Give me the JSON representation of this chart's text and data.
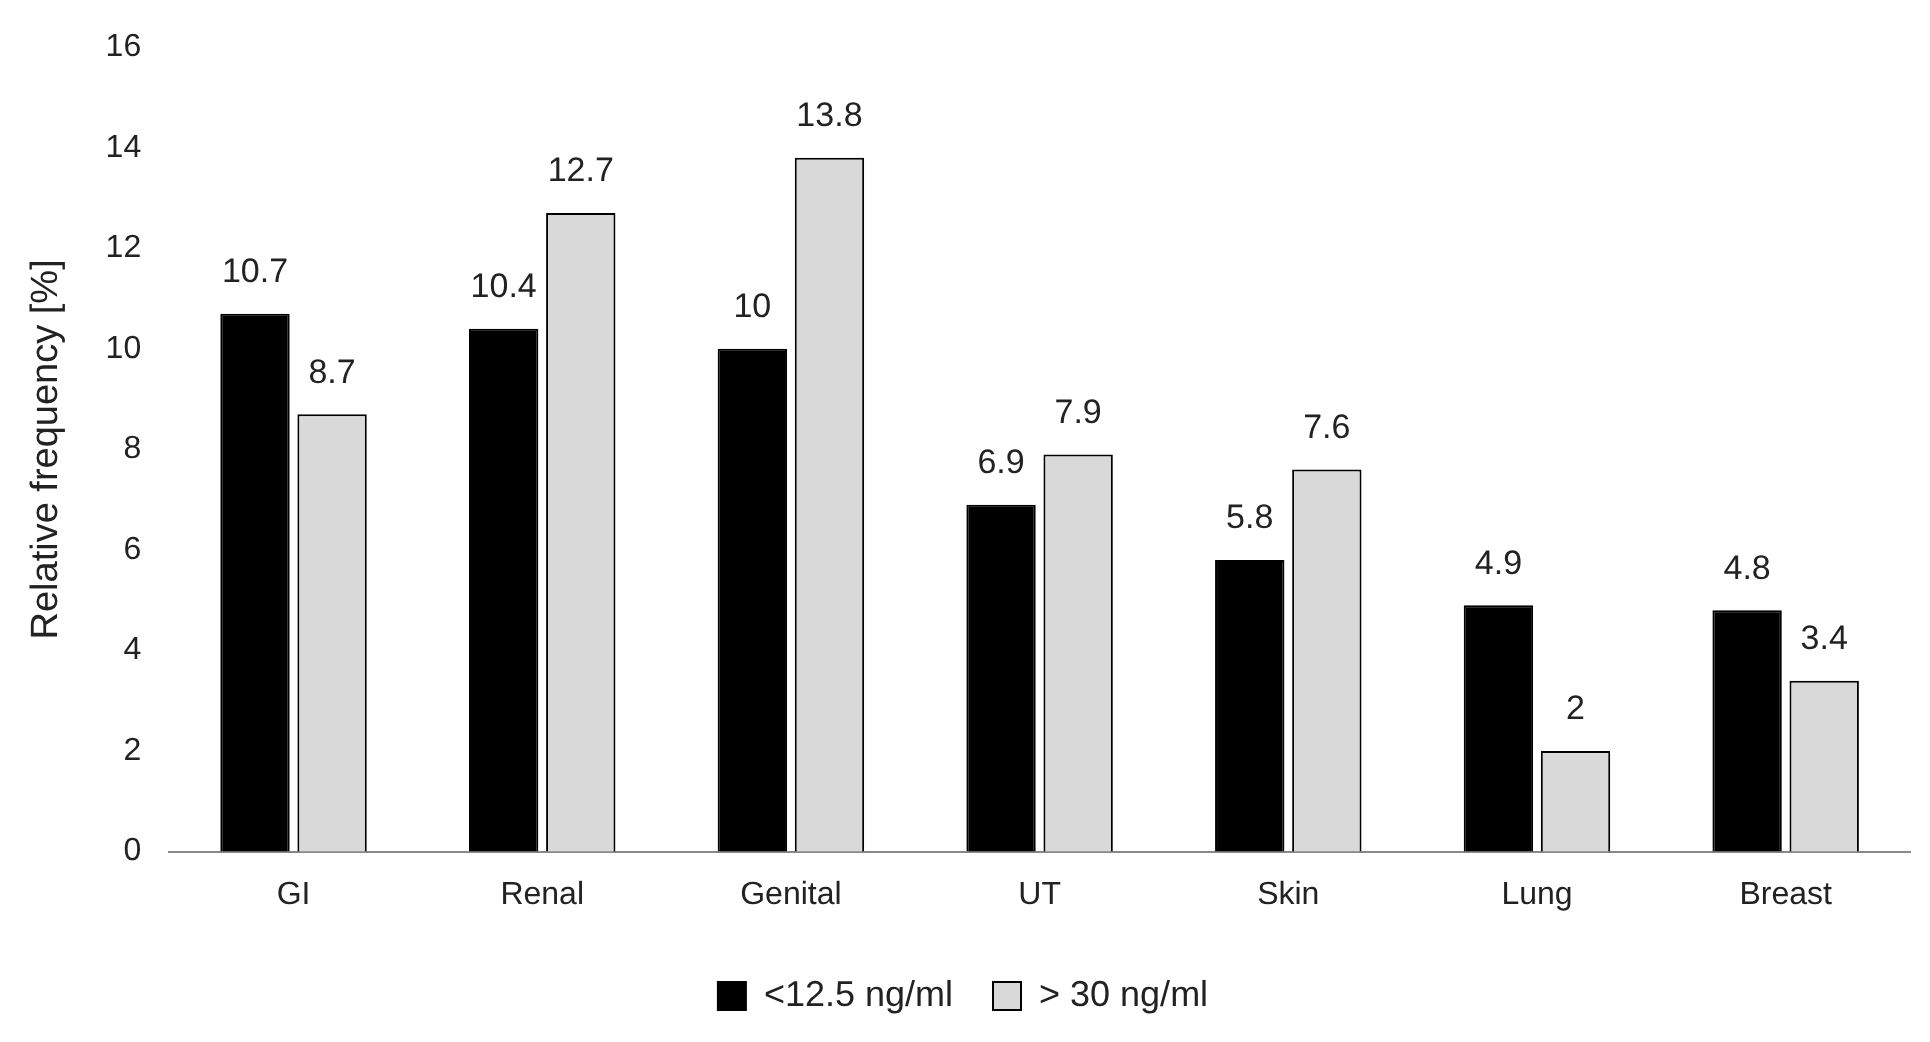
{
  "chart_data": {
    "type": "bar",
    "ylabel": "Relative frequency [%]",
    "categories": [
      "GI",
      "Renal",
      "Genital",
      "UT",
      "Skin",
      "Lung",
      "Breast"
    ],
    "series": [
      {
        "name": "<12.5 ng/ml",
        "color": "#000000",
        "values": [
          10.7,
          10.4,
          10,
          6.9,
          5.8,
          4.9,
          4.8
        ]
      },
      {
        "name": "> 30 ng/ml",
        "color": "#d9d9d9",
        "values": [
          8.7,
          12.7,
          13.8,
          7.9,
          7.6,
          2,
          3.4
        ]
      }
    ],
    "ylim": [
      0,
      16
    ],
    "yticks": [
      0,
      2,
      4,
      6,
      8,
      10,
      12,
      14,
      16
    ],
    "grid": false,
    "legend": "bottom",
    "data_labels": true
  }
}
